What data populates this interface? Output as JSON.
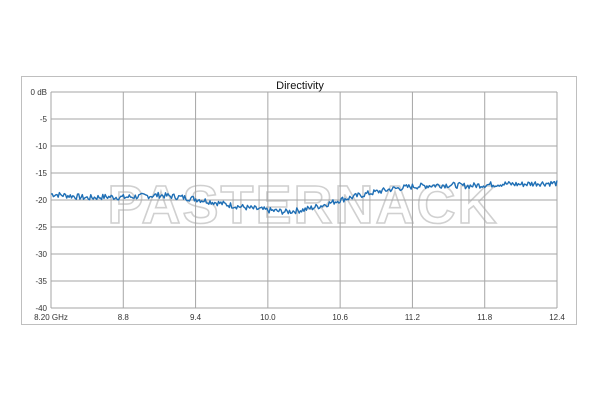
{
  "chart_data": {
    "type": "line",
    "title": "Directivity",
    "xlabel": "",
    "ylabel": "",
    "xlim": [
      8.2,
      12.4
    ],
    "ylim": [
      -40,
      0
    ],
    "x_ticks": [
      8.2,
      8.8,
      9.4,
      10.0,
      10.6,
      11.2,
      11.8,
      12.4
    ],
    "x_tick_labels": [
      "8.20 GHz",
      "8.8",
      "9.4",
      "10.0",
      "10.6",
      "11.2",
      "11.8",
      "12.4"
    ],
    "y_ticks": [
      0,
      -5,
      -10,
      -15,
      -20,
      -25,
      -30,
      -35,
      -40
    ],
    "y_tick_labels": [
      "0 dB",
      "-5",
      "-10",
      "-15",
      "-20",
      "-25",
      "-30",
      "-35",
      "-40"
    ],
    "grid": true,
    "legend": "none",
    "watermark": "PASTERNACK",
    "series": [
      {
        "color": "#1f6fb5",
        "x": [
          8.2,
          8.35,
          8.5,
          8.65,
          8.8,
          8.95,
          9.1,
          9.25,
          9.4,
          9.55,
          9.7,
          9.85,
          10.0,
          10.15,
          10.3,
          10.45,
          10.6,
          10.75,
          10.9,
          11.05,
          11.2,
          11.35,
          11.5,
          11.65,
          11.8,
          11.95,
          12.1,
          12.25,
          12.4
        ],
        "y": [
          -18.9,
          -19.2,
          -19.6,
          -19.4,
          -19.5,
          -19.3,
          -19.1,
          -19.4,
          -19.8,
          -20.4,
          -21.0,
          -21.5,
          -21.9,
          -22.2,
          -21.8,
          -21.0,
          -20.0,
          -19.2,
          -18.5,
          -17.9,
          -17.5,
          -17.3,
          -17.2,
          -17.4,
          -17.2,
          -17.0,
          -17.1,
          -16.9,
          -16.9
        ]
      }
    ]
  }
}
